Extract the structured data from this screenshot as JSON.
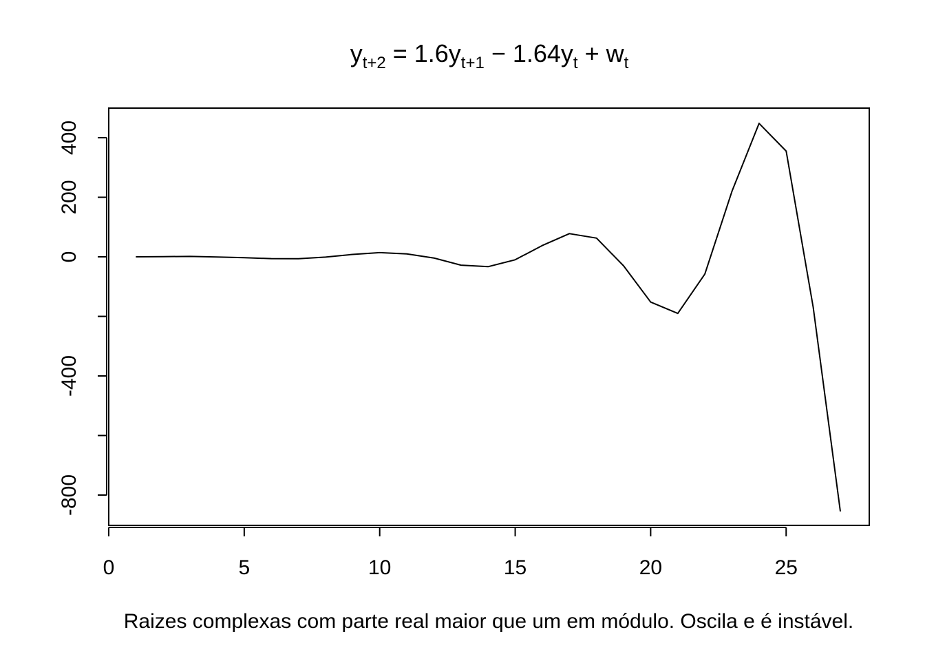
{
  "chart_data": {
    "type": "line",
    "title": {
      "base": "y",
      "sub1": "t+2",
      "eq": " = 1.6y",
      "sub2": "t+1",
      "minus": " − 1.64y",
      "sub3": "t",
      "plus": " + w",
      "sub4": "t"
    },
    "xlabel": "Raizes complexas com parte real maior que um em módulo. Oscila e é instável.",
    "ylabel": "",
    "xlim": [
      0,
      28
    ],
    "ylim": [
      -900,
      500
    ],
    "x_ticks": [
      0,
      5,
      10,
      15,
      20,
      25
    ],
    "y_ticks": [
      -800,
      -600,
      -400,
      -200,
      0,
      200,
      400
    ],
    "y_tick_labels": [
      "-800",
      "",
      "-400",
      "",
      "0",
      "200",
      "400"
    ],
    "series": [
      {
        "x": [
          1,
          2,
          3,
          4,
          5,
          6,
          7,
          8,
          9,
          10,
          11,
          12,
          13,
          14,
          15,
          16,
          17,
          18,
          19,
          20,
          21,
          22,
          23,
          24,
          25,
          26,
          27
        ],
        "values": [
          0,
          0.8,
          1.5,
          -0.5,
          -3,
          -6,
          -6.5,
          -1,
          8,
          14,
          10,
          -4,
          -28,
          -33,
          -10,
          38,
          78,
          63,
          -30,
          -152,
          -190,
          -58,
          220,
          448,
          355,
          -170,
          -855
        ]
      }
    ],
    "grid": false,
    "color": "#000000"
  }
}
